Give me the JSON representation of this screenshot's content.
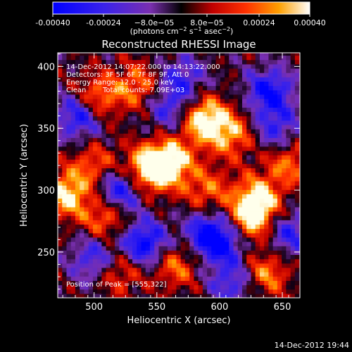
{
  "colorbar": {
    "ticks": [
      "-0.00040",
      "-0.00024",
      "−8.0e−05",
      "8.0e−05",
      "0.00024",
      "0.00040"
    ],
    "unit_main": "(photons cm",
    "unit_sup1": "−2",
    "unit_mid": " s",
    "unit_sup2": "−1",
    "unit_tail": " asec",
    "unit_sup3": "−2",
    "unit_end": ")",
    "range": [
      -0.0004,
      0.0004
    ]
  },
  "chart_data": {
    "type": "heatmap",
    "title": "Reconstructed RHESSI Image",
    "xlabel": "Heliocentric X (arcsec)",
    "ylabel": "Heliocentric Y (arcsec)",
    "xlim": [
      471,
      664
    ],
    "ylim": [
      213,
      411
    ],
    "xticks": [
      500,
      550,
      600,
      650
    ],
    "yticks": [
      250,
      300,
      350,
      400
    ],
    "colormap": "blue-purple-black-red-orange-yellow-white (diverging)",
    "peak_position": [
      555,
      322
    ],
    "grid": "off",
    "bright_regions": [
      {
        "x": 588,
        "y": 357,
        "intensity": 1.0
      },
      {
        "x": 560,
        "y": 323,
        "intensity": 0.95
      },
      {
        "x": 543,
        "y": 317,
        "intensity": 0.9
      },
      {
        "x": 503,
        "y": 375,
        "intensity": 0.65
      },
      {
        "x": 630,
        "y": 293,
        "intensity": 0.85
      },
      {
        "x": 625,
        "y": 275,
        "intensity": 0.7
      },
      {
        "x": 478,
        "y": 297,
        "intensity": 0.85
      },
      {
        "x": 509,
        "y": 278,
        "intensity": 0.6
      },
      {
        "x": 535,
        "y": 385,
        "intensity": 0.55
      },
      {
        "x": 610,
        "y": 345,
        "intensity": 0.6
      },
      {
        "x": 565,
        "y": 240,
        "intensity": 0.55
      },
      {
        "x": 637,
        "y": 233,
        "intensity": 0.6
      },
      {
        "x": 520,
        "y": 235,
        "intensity": 0.5
      },
      {
        "x": 590,
        "y": 300,
        "intensity": 0.5
      },
      {
        "x": 655,
        "y": 322,
        "intensity": 0.55
      },
      {
        "x": 500,
        "y": 320,
        "intensity": 0.5
      }
    ],
    "dark_regions": [
      {
        "x": 640,
        "y": 380,
        "intensity": -0.8
      },
      {
        "x": 520,
        "y": 300,
        "intensity": -0.8
      },
      {
        "x": 540,
        "y": 257,
        "intensity": -0.9
      },
      {
        "x": 590,
        "y": 265,
        "intensity": -0.75
      },
      {
        "x": 604,
        "y": 257,
        "intensity": -0.6
      },
      {
        "x": 488,
        "y": 360,
        "intensity": -0.75
      },
      {
        "x": 500,
        "y": 245,
        "intensity": -0.6
      },
      {
        "x": 570,
        "y": 390,
        "intensity": -0.55
      },
      {
        "x": 645,
        "y": 350,
        "intensity": -0.55
      },
      {
        "x": 560,
        "y": 365,
        "intensity": -0.5
      },
      {
        "x": 610,
        "y": 225,
        "intensity": -0.55
      },
      {
        "x": 655,
        "y": 265,
        "intensity": -0.6
      }
    ]
  },
  "annotations": {
    "time_range": "14-Dec-2012 14:07:22.000 to 14:13:22.000",
    "detectors": "Detectors: 3F 5F 6F 7F 8F 9F, Att 0",
    "energy": "Energy Range: 12.0 - 25.0 keV",
    "algorithm": "Clean",
    "total_counts": "Total counts: 7.09E+03",
    "peak": "Position of Peak = [555,322]"
  },
  "footer": {
    "timestamp": "14-Dec-2012 19:44"
  }
}
